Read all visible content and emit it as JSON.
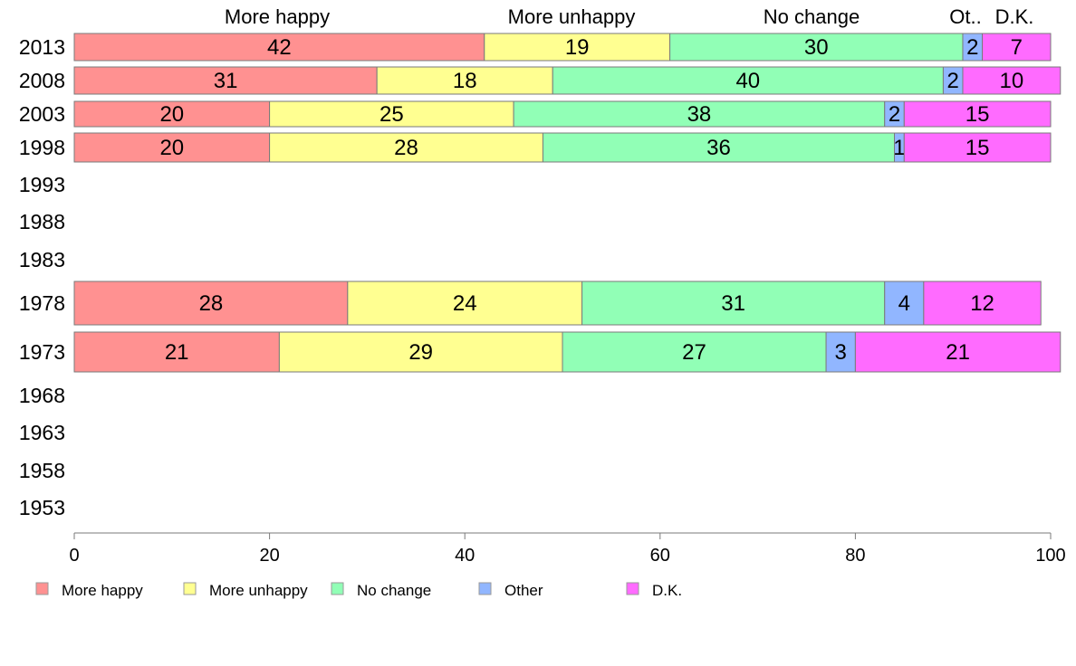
{
  "chart_data": {
    "type": "bar",
    "orientation": "horizontal",
    "stacked": true,
    "categories": [
      "2013",
      "2008",
      "2003",
      "1998",
      "1993",
      "1988",
      "1983",
      "1978",
      "1973",
      "1968",
      "1963",
      "1958",
      "1953"
    ],
    "series": [
      {
        "name": "More happy",
        "values": [
          42,
          31,
          20,
          20,
          null,
          null,
          null,
          28,
          21,
          null,
          null,
          null,
          null
        ]
      },
      {
        "name": "More unhappy",
        "values": [
          19,
          18,
          25,
          28,
          null,
          null,
          null,
          24,
          29,
          null,
          null,
          null,
          null
        ]
      },
      {
        "name": "No change",
        "values": [
          30,
          40,
          38,
          36,
          null,
          null,
          null,
          31,
          27,
          null,
          null,
          null,
          null
        ]
      },
      {
        "name": "Other",
        "values": [
          2,
          2,
          2,
          1,
          null,
          null,
          null,
          4,
          3,
          null,
          null,
          null,
          null
        ]
      },
      {
        "name": "D.K.",
        "values": [
          7,
          10,
          15,
          15,
          null,
          null,
          null,
          12,
          21,
          null,
          null,
          null,
          null
        ]
      }
    ],
    "top_labels": [
      "More happy",
      "More unhappy",
      "No change",
      "Ot..",
      "D.K."
    ],
    "xlim": [
      0,
      100
    ],
    "xticks": [
      0,
      20,
      40,
      60,
      80,
      100
    ],
    "grid": false,
    "legend_position": "bottom-left",
    "colors": [
      "#ff9191",
      "#ffff91",
      "#91ffb6",
      "#91b6ff",
      "#ff6bff"
    ]
  }
}
